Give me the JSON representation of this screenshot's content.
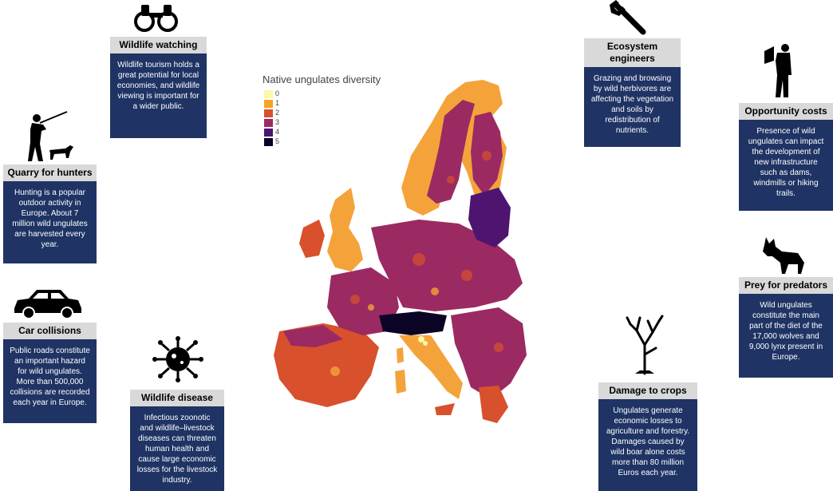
{
  "legend": {
    "title": "Native ungulates diversity",
    "items": [
      {
        "label": "0",
        "color": "#fcf7a8"
      },
      {
        "label": "1",
        "color": "#f9a224"
      },
      {
        "label": "2",
        "color": "#d8512c"
      },
      {
        "label": "3",
        "color": "#9b2a62"
      },
      {
        "label": "4",
        "color": "#4f1470"
      },
      {
        "label": "5",
        "color": "#0b0425"
      }
    ]
  },
  "cards": {
    "wildlife_watching": {
      "title": "Wildlife watching",
      "text": "Wildlife tourism holds a great potential for local economies, and wildlife viewing is important for a wider public."
    },
    "quarry": {
      "title": "Quarry for hunters",
      "text": "Hunting is a popular outdoor activity in Europe. About 7 million wild ungulates are harvested every year."
    },
    "car_collisions": {
      "title": "Car collisions",
      "text": "Public roads constitute an important hazard for wild ungulates. More than 500,000 collisions are recorded each year in Europe."
    },
    "wildlife_disease": {
      "title": "Wildlife disease",
      "text": "Infectious zoonotic and wildlife–livestock diseases can threaten human health and cause large economic losses for the livestock industry."
    },
    "ecosystem": {
      "title": "Ecosystem engineers",
      "text": "Grazing and browsing by wild herbivores are affecting the vegetation and soils by redistribution of nutrients."
    },
    "opportunity": {
      "title": "Opportunity costs",
      "text": "Presence of wild ungulates can impact the development of new infrastructure such as dams, windmills or hiking trails."
    },
    "prey": {
      "title": "Prey for predators",
      "text": "Wild ungulates constitute the main part of the diet of the 17,000  wolves and 9,000 lynx present in Europe."
    },
    "crops": {
      "title": "Damage to crops",
      "text": "Ungulates generate economic losses to agriculture and forestry. Damages caused by wild boar alone costs more than 80 million Euros each year."
    }
  },
  "icons": [
    "binoculars-icon",
    "hunter-icon",
    "car-icon",
    "virus-icon",
    "wrench-icon",
    "person-with-map-icon",
    "wolf-icon",
    "dead-tree-icon"
  ]
}
